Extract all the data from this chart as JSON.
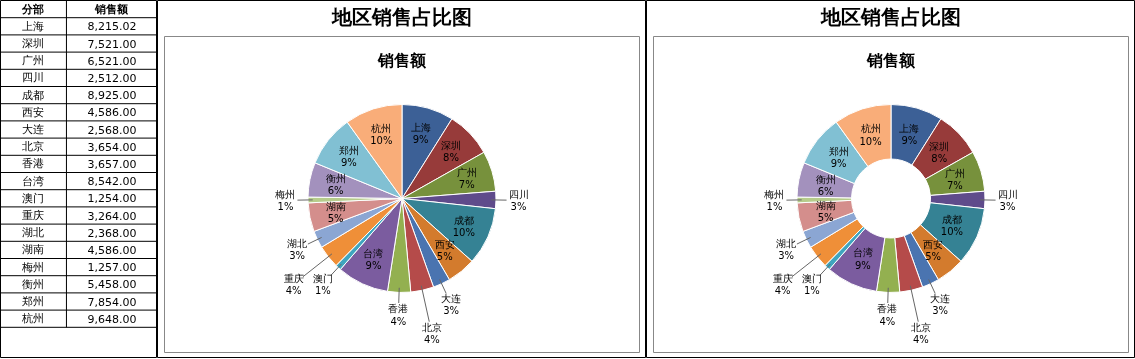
{
  "chart_data": [
    {
      "type": "other",
      "xlabel": "分部",
      "ylabel": "销售额",
      "categories": [
        "上海",
        "深圳",
        "广州",
        "四川",
        "成都",
        "西安",
        "大连",
        "北京",
        "香港",
        "台湾",
        "澳门",
        "重庆",
        "湖北",
        "湖南",
        "梅州",
        "衡州",
        "郑州",
        "杭州"
      ],
      "value_labels": [
        "8,215.02",
        "7,521.00",
        "6,521.00",
        "2,512.00",
        "8,925.00",
        "4,586.00",
        "2,568.00",
        "3,654.00",
        "3,657.00",
        "8,542.00",
        "1,254.00",
        "3,264.00",
        "2,368.00",
        "4,586.00",
        "1,257.00",
        "5,458.00",
        "7,854.00",
        "9,648.00"
      ]
    },
    {
      "type": "pie",
      "title": "地区销售占比图",
      "subtitle": "销售额",
      "value_labels": [
        "9%",
        "8%",
        "7%",
        "3%",
        "10%",
        "5%",
        "3%",
        "4%",
        "4%",
        "9%",
        "1%",
        "4%",
        "3%",
        "5%",
        "1%",
        "6%",
        "9%",
        "10%"
      ],
      "categories": [
        "上海",
        "深圳",
        "广州",
        "四川",
        "成都",
        "西安",
        "大连",
        "北京",
        "香港",
        "台湾",
        "澳门",
        "重庆",
        "湖北",
        "湖南",
        "梅州",
        "衡州",
        "郑州",
        "杭州"
      ],
      "values": [
        9,
        8,
        7,
        3,
        10,
        5,
        3,
        4,
        4,
        9,
        1,
        4,
        3,
        5,
        1,
        6,
        9,
        10
      ],
      "colors": [
        "#3c6096",
        "#973b3a",
        "#77913c",
        "#5f4b8b",
        "#358294",
        "#d37b2d",
        "#4a74b0",
        "#b54b4a",
        "#93b050",
        "#7b5c9f",
        "#3fa5bf",
        "#ef8f38",
        "#8ba6d3",
        "#d48e8c",
        "#b6cc8b",
        "#a391bd",
        "#81c0d3",
        "#f9ad79"
      ]
    },
    {
      "type": "donut",
      "title": "地区销售占比图",
      "subtitle": "销售额",
      "value_labels": [
        "9%",
        "8%",
        "7%",
        "3%",
        "10%",
        "5%",
        "3%",
        "4%",
        "4%",
        "9%",
        "1%",
        "4%",
        "3%",
        "5%",
        "1%",
        "6%",
        "9%",
        "10%"
      ],
      "categories": [
        "上海",
        "深圳",
        "广州",
        "四川",
        "成都",
        "西安",
        "大连",
        "北京",
        "香港",
        "台湾",
        "澳门",
        "重庆",
        "湖北",
        "湖南",
        "梅州",
        "衡州",
        "郑州",
        "杭州"
      ],
      "values": [
        9,
        8,
        7,
        3,
        10,
        5,
        3,
        4,
        4,
        9,
        1,
        4,
        3,
        5,
        1,
        6,
        9,
        10
      ],
      "colors": [
        "#3c6096",
        "#973b3a",
        "#77913c",
        "#5f4b8b",
        "#358294",
        "#d37b2d",
        "#4a74b0",
        "#b54b4a",
        "#93b050",
        "#7b5c9f",
        "#3fa5bf",
        "#ef8f38",
        "#8ba6d3",
        "#d48e8c",
        "#b6cc8b",
        "#a391bd",
        "#81c0d3",
        "#f9ad79"
      ]
    }
  ]
}
